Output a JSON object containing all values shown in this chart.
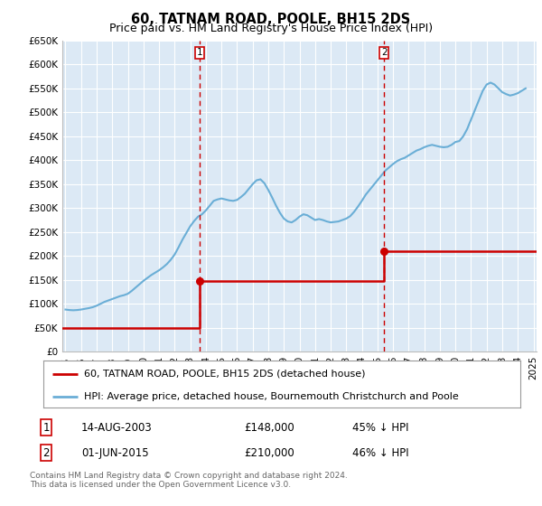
{
  "title": "60, TATNAM ROAD, POOLE, BH15 2DS",
  "subtitle": "Price paid vs. HM Land Registry's House Price Index (HPI)",
  "title_fontsize": 10.5,
  "subtitle_fontsize": 9,
  "background_color": "#ffffff",
  "plot_bg_color": "#dce9f5",
  "grid_color": "#ffffff",
  "ylim": [
    0,
    650000
  ],
  "yticks": [
    0,
    50000,
    100000,
    150000,
    200000,
    250000,
    300000,
    350000,
    400000,
    450000,
    500000,
    550000,
    600000,
    650000
  ],
  "ytick_labels": [
    "£0",
    "£50K",
    "£100K",
    "£150K",
    "£200K",
    "£250K",
    "£300K",
    "£350K",
    "£400K",
    "£450K",
    "£500K",
    "£550K",
    "£600K",
    "£650K"
  ],
  "hpi_color": "#6aaed6",
  "price_color": "#cc0000",
  "vline_color": "#cc0000",
  "marker1_date": 2003.62,
  "marker2_date": 2015.42,
  "marker1_price": 148000,
  "marker2_price": 210000,
  "legend_line1": "60, TATNAM ROAD, POOLE, BH15 2DS (detached house)",
  "legend_line2": "HPI: Average price, detached house, Bournemouth Christchurch and Poole",
  "table_row1": [
    "1",
    "14-AUG-2003",
    "£148,000",
    "45% ↓ HPI"
  ],
  "table_row2": [
    "2",
    "01-JUN-2015",
    "£210,000",
    "46% ↓ HPI"
  ],
  "footnote": "Contains HM Land Registry data © Crown copyright and database right 2024.\nThis data is licensed under the Open Government Licence v3.0.",
  "hpi_x": [
    1995.0,
    1995.25,
    1995.5,
    1995.75,
    1996.0,
    1996.25,
    1996.5,
    1996.75,
    1997.0,
    1997.25,
    1997.5,
    1997.75,
    1998.0,
    1998.25,
    1998.5,
    1998.75,
    1999.0,
    1999.25,
    1999.5,
    1999.75,
    2000.0,
    2000.25,
    2000.5,
    2000.75,
    2001.0,
    2001.25,
    2001.5,
    2001.75,
    2002.0,
    2002.25,
    2002.5,
    2002.75,
    2003.0,
    2003.25,
    2003.5,
    2003.75,
    2004.0,
    2004.25,
    2004.5,
    2004.75,
    2005.0,
    2005.25,
    2005.5,
    2005.75,
    2006.0,
    2006.25,
    2006.5,
    2006.75,
    2007.0,
    2007.25,
    2007.5,
    2007.75,
    2008.0,
    2008.25,
    2008.5,
    2008.75,
    2009.0,
    2009.25,
    2009.5,
    2009.75,
    2010.0,
    2010.25,
    2010.5,
    2010.75,
    2011.0,
    2011.25,
    2011.5,
    2011.75,
    2012.0,
    2012.25,
    2012.5,
    2012.75,
    2013.0,
    2013.25,
    2013.5,
    2013.75,
    2014.0,
    2014.25,
    2014.5,
    2014.75,
    2015.0,
    2015.25,
    2015.5,
    2015.75,
    2016.0,
    2016.25,
    2016.5,
    2016.75,
    2017.0,
    2017.25,
    2017.5,
    2017.75,
    2018.0,
    2018.25,
    2018.5,
    2018.75,
    2019.0,
    2019.25,
    2019.5,
    2019.75,
    2020.0,
    2020.25,
    2020.5,
    2020.75,
    2021.0,
    2021.25,
    2021.5,
    2021.75,
    2022.0,
    2022.25,
    2022.5,
    2022.75,
    2023.0,
    2023.25,
    2023.5,
    2023.75,
    2024.0,
    2024.25,
    2024.5
  ],
  "hpi_y": [
    88000,
    87000,
    86500,
    87000,
    88000,
    89500,
    91000,
    93000,
    96000,
    100000,
    104000,
    107000,
    110000,
    113000,
    116000,
    118000,
    121000,
    127000,
    134000,
    141000,
    148000,
    154000,
    160000,
    165000,
    170000,
    176000,
    183000,
    192000,
    203000,
    218000,
    234000,
    248000,
    262000,
    273000,
    282000,
    287000,
    295000,
    305000,
    315000,
    318000,
    320000,
    318000,
    316000,
    315000,
    317000,
    323000,
    330000,
    340000,
    350000,
    358000,
    360000,
    352000,
    338000,
    322000,
    305000,
    290000,
    278000,
    272000,
    270000,
    275000,
    282000,
    287000,
    285000,
    280000,
    275000,
    277000,
    275000,
    272000,
    270000,
    271000,
    272000,
    275000,
    278000,
    283000,
    292000,
    303000,
    315000,
    328000,
    338000,
    348000,
    358000,
    368000,
    378000,
    385000,
    392000,
    398000,
    402000,
    405000,
    410000,
    415000,
    420000,
    423000,
    427000,
    430000,
    432000,
    430000,
    428000,
    427000,
    428000,
    432000,
    438000,
    440000,
    450000,
    465000,
    485000,
    505000,
    525000,
    545000,
    558000,
    562000,
    558000,
    550000,
    542000,
    538000,
    535000,
    537000,
    540000,
    545000,
    550000
  ],
  "price_x": [
    1994.8,
    2003.62,
    2003.62,
    2015.42,
    2015.42,
    2025.2
  ],
  "price_y": [
    50000,
    50000,
    148000,
    148000,
    210000,
    210000
  ],
  "xlim": [
    1994.8,
    2025.2
  ],
  "xticks": [
    1995,
    1996,
    1997,
    1998,
    1999,
    2000,
    2001,
    2002,
    2003,
    2004,
    2005,
    2006,
    2007,
    2008,
    2009,
    2010,
    2011,
    2012,
    2013,
    2014,
    2015,
    2016,
    2017,
    2018,
    2019,
    2020,
    2021,
    2022,
    2023,
    2024,
    2025
  ]
}
